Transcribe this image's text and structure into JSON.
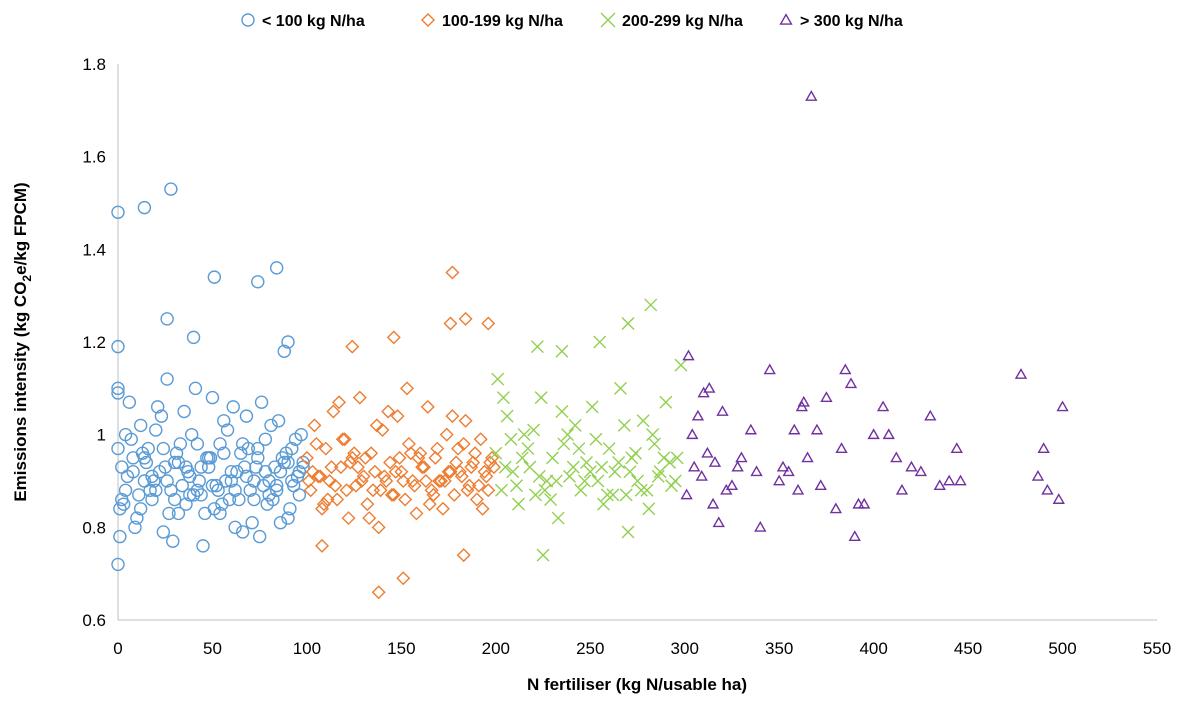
{
  "chart_data": {
    "type": "scatter",
    "xlabel": "N fertiliser (kg N/usable ha)",
    "ylabel_parts": {
      "before": "Emissions intensity (kg CO",
      "subscript": "2",
      "after": "e/kg FPCM)"
    },
    "xlim": [
      0,
      550
    ],
    "ylim": [
      0.6,
      1.8
    ],
    "xticks": [
      0,
      50,
      100,
      150,
      200,
      250,
      300,
      350,
      400,
      450,
      500,
      550
    ],
    "yticks": [
      0.6,
      0.8,
      1,
      1.2,
      1.4,
      1.6,
      1.8
    ],
    "grid": false,
    "legend_position": "top",
    "series": [
      {
        "name": "< 100 kg N/ha",
        "marker": "circle",
        "color": "#5b9bd5",
        "x": [
          0,
          0,
          0,
          0,
          1,
          1,
          2,
          4,
          6,
          8,
          10,
          12,
          14,
          16,
          18,
          20,
          22,
          24,
          26,
          28,
          30,
          32,
          35,
          38,
          40,
          42,
          45,
          48,
          50,
          52,
          55,
          58,
          60,
          62,
          65,
          68,
          70,
          73,
          75,
          78,
          80,
          82,
          85,
          88,
          90,
          92,
          95,
          97,
          0,
          3,
          7,
          11,
          15,
          19,
          23,
          27,
          31,
          34,
          37,
          41,
          44,
          47,
          51,
          54,
          57,
          61,
          64,
          67,
          71,
          74,
          77,
          81,
          84,
          87,
          91,
          94,
          96,
          5,
          9,
          13,
          17,
          21,
          25,
          29,
          33,
          36,
          39,
          43,
          46,
          49,
          53,
          56,
          59,
          63,
          66,
          69,
          72,
          76,
          79,
          83,
          86,
          89,
          93,
          98,
          2,
          8,
          14,
          20,
          26,
          32,
          38,
          44,
          50,
          56,
          62,
          68,
          74,
          80,
          86,
          92,
          98,
          4,
          12,
          18,
          24,
          30,
          36,
          42,
          48,
          54,
          60,
          66,
          72,
          78,
          84,
          90,
          96,
          0,
          14,
          28,
          51,
          74,
          84,
          26,
          40,
          88,
          90
        ],
        "y": [
          1.48,
          1.19,
          1.09,
          0.72,
          0.78,
          0.84,
          0.93,
          0.88,
          1.07,
          0.95,
          0.82,
          1.02,
          0.9,
          0.97,
          0.86,
          1.01,
          0.92,
          0.79,
          1.12,
          0.88,
          0.94,
          0.83,
          1.05,
          0.91,
          0.87,
          0.98,
          0.76,
          0.93,
          1.08,
          0.89,
          0.85,
          1.01,
          0.92,
          0.8,
          0.96,
          1.04,
          0.88,
          0.93,
          0.78,
          0.99,
          0.9,
          0.86,
          1.03,
          0.94,
          0.82,
          0.97,
          0.91,
          1.0,
          0.97,
          0.85,
          0.99,
          0.87,
          0.94,
          0.9,
          1.04,
          0.83,
          0.96,
          0.89,
          0.92,
          1.1,
          0.87,
          0.95,
          0.84,
          0.98,
          0.9,
          1.06,
          0.86,
          0.93,
          0.81,
          0.97,
          0.89,
          1.02,
          0.88,
          0.95,
          0.84,
          0.99,
          0.92,
          0.91,
          0.8,
          0.96,
          0.88,
          1.06,
          0.93,
          0.77,
          0.98,
          0.85,
          1.0,
          0.9,
          0.83,
          0.95,
          0.88,
          1.03,
          0.86,
          0.92,
          0.79,
          0.97,
          0.9,
          1.07,
          0.85,
          0.93,
          0.81,
          0.96,
          0.89,
          0.94,
          0.86,
          0.92,
          0.95,
          0.88,
          0.9,
          0.94,
          0.87,
          0.93,
          0.89,
          0.96,
          0.88,
          0.91,
          0.95,
          0.87,
          0.92,
          0.9,
          0.93,
          1.0,
          0.84,
          0.91,
          0.97,
          0.86,
          0.93,
          0.88,
          0.95,
          0.83,
          0.9,
          0.98,
          0.86,
          0.92,
          0.89,
          0.94,
          0.87,
          1.1,
          1.49,
          1.53,
          1.34,
          1.33,
          1.36,
          1.25,
          1.21,
          1.18,
          1.2
        ]
      },
      {
        "name": "100-199 kg N/ha",
        "marker": "diamond",
        "color": "#ed7d31",
        "x": [
          100,
          102,
          104,
          106,
          108,
          110,
          112,
          114,
          116,
          118,
          120,
          122,
          124,
          126,
          128,
          130,
          132,
          134,
          136,
          138,
          140,
          142,
          144,
          146,
          148,
          150,
          152,
          154,
          156,
          158,
          160,
          162,
          164,
          166,
          168,
          170,
          172,
          174,
          176,
          178,
          180,
          182,
          184,
          186,
          188,
          190,
          192,
          194,
          196,
          198,
          101,
          105,
          109,
          113,
          117,
          121,
          125,
          129,
          133,
          137,
          141,
          145,
          149,
          153,
          157,
          161,
          165,
          169,
          173,
          177,
          181,
          185,
          189,
          193,
          197,
          103,
          111,
          119,
          127,
          135,
          143,
          151,
          159,
          167,
          175,
          183,
          191,
          199,
          107,
          123,
          139,
          155,
          171,
          187,
          115,
          131,
          147,
          163,
          179,
          195,
          124,
          146,
          176,
          184,
          177,
          196,
          138,
          151,
          108,
          183
        ],
        "y": [
          0.95,
          0.88,
          1.02,
          0.91,
          0.84,
          0.97,
          0.9,
          1.05,
          0.86,
          0.93,
          0.99,
          0.82,
          0.95,
          0.89,
          1.08,
          0.91,
          0.85,
          0.96,
          0.92,
          0.8,
          1.01,
          0.9,
          0.94,
          0.87,
          1.04,
          0.92,
          0.86,
          0.98,
          0.9,
          0.83,
          0.96,
          0.93,
          1.06,
          0.88,
          0.95,
          0.9,
          0.84,
          1.0,
          0.92,
          0.87,
          0.97,
          0.91,
          1.03,
          0.89,
          0.94,
          0.86,
          0.99,
          0.92,
          0.88,
          0.95,
          0.9,
          0.98,
          0.85,
          0.93,
          1.07,
          0.88,
          0.96,
          0.9,
          0.82,
          1.02,
          0.91,
          0.87,
          0.95,
          1.1,
          0.89,
          0.93,
          0.85,
          0.97,
          0.9,
          1.04,
          0.92,
          0.88,
          0.96,
          0.84,
          0.94,
          0.92,
          0.86,
          0.99,
          0.93,
          0.88,
          1.05,
          0.9,
          0.95,
          0.87,
          0.92,
          0.98,
          0.89,
          0.93,
          0.91,
          0.94,
          0.88,
          0.96,
          0.9,
          0.93,
          0.89,
          0.95,
          0.92,
          0.9,
          0.94,
          0.91,
          1.19,
          1.21,
          1.24,
          1.25,
          1.35,
          1.24,
          0.66,
          0.69,
          0.76,
          0.74
        ]
      },
      {
        "name": "200-299 kg N/ha",
        "marker": "x",
        "color": "#92d050",
        "x": [
          200,
          203,
          206,
          209,
          212,
          215,
          218,
          221,
          224,
          227,
          230,
          233,
          236,
          239,
          242,
          245,
          248,
          251,
          254,
          257,
          260,
          263,
          266,
          269,
          272,
          275,
          278,
          281,
          284,
          287,
          290,
          293,
          296,
          201,
          205,
          211,
          217,
          223,
          229,
          235,
          241,
          247,
          253,
          259,
          265,
          271,
          277,
          283,
          289,
          295,
          204,
          214,
          226,
          238,
          250,
          262,
          274,
          286,
          298,
          208,
          220,
          232,
          244,
          256,
          268,
          280,
          292,
          222,
          235,
          255,
          270,
          282,
          225,
          270
        ],
        "y": [
          0.96,
          0.88,
          1.04,
          0.92,
          0.85,
          1.0,
          0.93,
          0.87,
          1.08,
          0.9,
          0.95,
          0.82,
          0.98,
          0.91,
          1.02,
          0.88,
          0.94,
          1.06,
          0.9,
          0.85,
          0.97,
          0.92,
          1.1,
          0.87,
          0.95,
          0.9,
          1.03,
          0.84,
          0.98,
          0.92,
          1.07,
          0.89,
          0.95,
          1.12,
          0.93,
          0.89,
          0.97,
          0.91,
          0.86,
          1.05,
          0.93,
          0.9,
          0.99,
          0.87,
          0.94,
          0.92,
          0.88,
          1.0,
          0.95,
          0.9,
          1.08,
          0.95,
          0.88,
          1.0,
          0.92,
          0.87,
          0.96,
          0.91,
          1.15,
          0.99,
          1.01,
          0.9,
          0.97,
          0.93,
          1.02,
          0.88,
          0.94,
          1.19,
          1.18,
          1.2,
          1.24,
          1.28,
          0.74,
          0.79
        ]
      },
      {
        "name": "> 300 kg N/ha",
        "marker": "triangle",
        "color": "#7030a0",
        "x": [
          301,
          302,
          304,
          305,
          307,
          309,
          310,
          312,
          313,
          315,
          316,
          318,
          320,
          322,
          325,
          328,
          330,
          335,
          338,
          340,
          345,
          350,
          352,
          355,
          358,
          360,
          362,
          363,
          365,
          367,
          370,
          372,
          375,
          380,
          383,
          385,
          388,
          390,
          392,
          395,
          400,
          405,
          408,
          412,
          415,
          420,
          425,
          430,
          435,
          440,
          444,
          446,
          478,
          487,
          490,
          492,
          498,
          500
        ],
        "y": [
          0.87,
          1.17,
          1.0,
          0.93,
          1.04,
          0.91,
          1.09,
          0.96,
          1.1,
          0.85,
          0.94,
          0.81,
          1.05,
          0.88,
          0.89,
          0.93,
          0.95,
          1.01,
          0.92,
          0.8,
          1.14,
          0.9,
          0.93,
          0.92,
          1.01,
          0.88,
          1.06,
          1.07,
          0.95,
          1.73,
          1.01,
          0.89,
          1.08,
          0.84,
          0.97,
          1.14,
          1.11,
          0.78,
          0.85,
          0.85,
          1.0,
          1.06,
          1.0,
          0.95,
          0.88,
          0.93,
          0.92,
          1.04,
          0.89,
          0.9,
          0.97,
          0.9,
          1.13,
          0.91,
          0.97,
          0.88,
          0.86,
          1.06
        ]
      }
    ]
  }
}
